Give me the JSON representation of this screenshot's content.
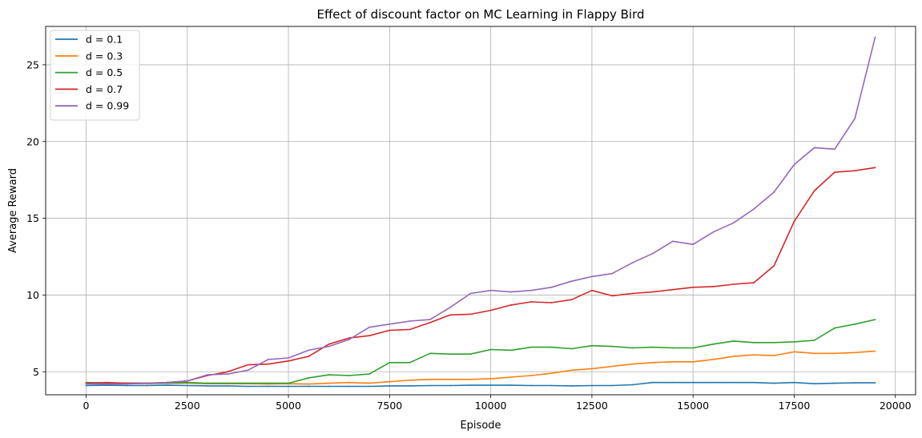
{
  "chart_data": {
    "type": "line",
    "title": "Effect of discount factor on MC Learning in Flappy Bird",
    "xlabel": "Episode",
    "ylabel": "Average Reward",
    "xlim": [
      -1000,
      20500
    ],
    "ylim": [
      3.5,
      27.5
    ],
    "xticks": [
      0,
      2500,
      5000,
      7500,
      10000,
      12500,
      15000,
      17500,
      20000
    ],
    "xtick_labels": [
      "0",
      "2500",
      "5000",
      "7500",
      "10000",
      "12500",
      "15000",
      "17500",
      "20000"
    ],
    "yticks": [
      5,
      10,
      15,
      20,
      25
    ],
    "ytick_labels": [
      "5",
      "10",
      "15",
      "20",
      "25"
    ],
    "grid": true,
    "legend_position": "top-left",
    "x": [
      0,
      500,
      1000,
      1500,
      2000,
      2500,
      3000,
      3500,
      4000,
      4500,
      5000,
      5500,
      6000,
      6500,
      7000,
      7500,
      8000,
      8500,
      9000,
      9500,
      10000,
      10500,
      11000,
      11500,
      12000,
      12500,
      13000,
      13500,
      14000,
      14500,
      15000,
      15500,
      16000,
      16500,
      17000,
      17500,
      18000,
      18500,
      19000,
      19500
    ],
    "series": [
      {
        "name": "d = 0.1",
        "color": "#1f77b4",
        "values": [
          4.1,
          4.12,
          4.1,
          4.1,
          4.12,
          4.1,
          4.08,
          4.08,
          4.05,
          4.05,
          4.05,
          4.05,
          4.05,
          4.05,
          4.05,
          4.08,
          4.08,
          4.1,
          4.1,
          4.12,
          4.12,
          4.12,
          4.1,
          4.1,
          4.08,
          4.1,
          4.1,
          4.15,
          4.3,
          4.3,
          4.3,
          4.3,
          4.3,
          4.3,
          4.25,
          4.3,
          4.22,
          4.25,
          4.28,
          4.28
        ]
      },
      {
        "name": "d = 0.3",
        "color": "#ff7f0e",
        "values": [
          4.25,
          4.22,
          4.22,
          4.22,
          4.25,
          4.25,
          4.22,
          4.22,
          4.22,
          4.2,
          4.22,
          4.2,
          4.25,
          4.3,
          4.25,
          4.35,
          4.45,
          4.5,
          4.5,
          4.5,
          4.55,
          4.65,
          4.75,
          4.9,
          5.1,
          5.2,
          5.35,
          5.5,
          5.6,
          5.65,
          5.65,
          5.8,
          6.0,
          6.1,
          6.05,
          6.3,
          6.2,
          6.2,
          6.25,
          6.35
        ]
      },
      {
        "name": "d = 0.5",
        "color": "#2ca02c",
        "values": [
          4.3,
          4.28,
          4.25,
          4.25,
          4.25,
          4.3,
          4.25,
          4.25,
          4.25,
          4.25,
          4.25,
          4.6,
          4.8,
          4.75,
          4.85,
          5.6,
          5.6,
          6.2,
          6.15,
          6.15,
          6.45,
          6.4,
          6.6,
          6.6,
          6.5,
          6.7,
          6.65,
          6.55,
          6.6,
          6.55,
          6.55,
          6.8,
          7.0,
          6.9,
          6.9,
          6.95,
          7.05,
          7.85,
          8.1,
          8.4
        ]
      },
      {
        "name": "d = 0.7",
        "color": "#d62728",
        "values": [
          4.25,
          4.3,
          4.25,
          4.25,
          4.3,
          4.4,
          4.75,
          5.0,
          5.45,
          5.5,
          5.7,
          6.0,
          6.8,
          7.2,
          7.35,
          7.7,
          7.75,
          8.2,
          8.7,
          8.75,
          9.0,
          9.35,
          9.55,
          9.5,
          9.7,
          10.3,
          9.95,
          10.1,
          10.2,
          10.35,
          10.5,
          10.55,
          10.7,
          10.8,
          11.9,
          14.8,
          16.8,
          18.0,
          18.1,
          18.3
        ]
      },
      {
        "name": "d = 0.99",
        "color": "#9467bd",
        "values": [
          4.2,
          4.2,
          4.2,
          4.25,
          4.3,
          4.4,
          4.8,
          4.85,
          5.1,
          5.8,
          5.9,
          6.4,
          6.65,
          7.1,
          7.9,
          8.1,
          8.3,
          8.4,
          9.2,
          10.1,
          10.3,
          10.2,
          10.3,
          10.5,
          10.9,
          11.2,
          11.4,
          12.1,
          12.7,
          13.5,
          13.3,
          14.1,
          14.7,
          15.6,
          16.7,
          18.5,
          19.6,
          19.5,
          21.5,
          26.8
        ]
      }
    ]
  }
}
